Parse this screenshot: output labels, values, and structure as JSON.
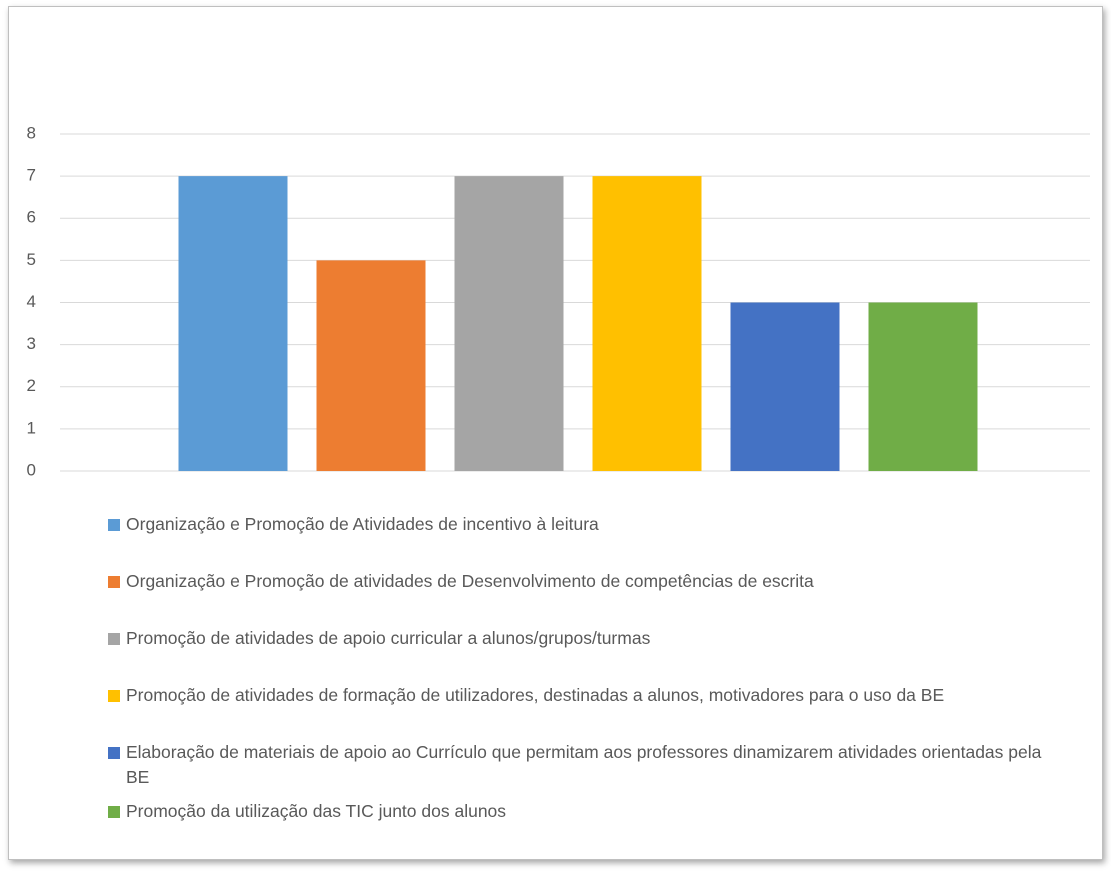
{
  "chart_data": {
    "type": "bar",
    "categories": [
      null
    ],
    "series": [
      {
        "name": "Organização e Promoção de Atividades de incentivo à leitura",
        "color": "#5b9bd5",
        "values": [
          7
        ]
      },
      {
        "name": "Organização e Promoção de atividades de Desenvolvimento de competências de escrita",
        "color": "#ed7d31",
        "values": [
          5
        ]
      },
      {
        "name": "Promoção de atividades de apoio curricular a alunos/grupos/turmas",
        "color": "#a5a5a5",
        "values": [
          7
        ]
      },
      {
        "name": "Promoção de atividades de formação de utilizadores, destinadas a alunos, motivadores para o uso da BE",
        "color": "#ffc000",
        "values": [
          7
        ]
      },
      {
        "name": "Elaboração de materiais de apoio ao Currículo que permitam aos professores dinamizarem atividades orientadas pela BE",
        "color": "#4472c4",
        "values": [
          4
        ]
      },
      {
        "name": "Promoção da utilização das TIC junto dos alunos",
        "color": "#70ad47",
        "values": [
          4
        ]
      }
    ],
    "ylim": [
      0,
      8
    ],
    "yticks": [
      0,
      1,
      2,
      3,
      4,
      5,
      6,
      7,
      8
    ],
    "grid": true,
    "legend": "bottom"
  }
}
